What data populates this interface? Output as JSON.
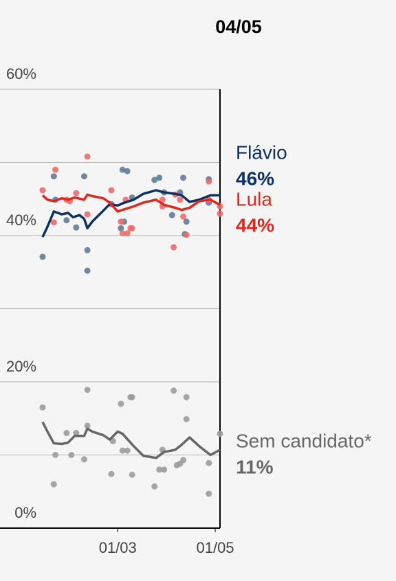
{
  "chart_data": {
    "type": "line",
    "title": "04/05",
    "xlim": [
      "13/01",
      "04/05"
    ],
    "xticks": [
      "01/03",
      "01/05"
    ],
    "ylim": [
      0,
      60
    ],
    "yticks": [
      {
        "value": 0,
        "label": "0%"
      },
      {
        "value": 20,
        "label": "20%"
      },
      {
        "value": 40,
        "label": "40%"
      },
      {
        "value": 60,
        "label": "60%"
      }
    ],
    "minor_yticks": [
      10,
      30,
      50
    ],
    "grid": true,
    "series": [
      {
        "name": "Flávio",
        "latest_label": "46%",
        "color": "#0d3261",
        "dot_color": "#5f7b9a",
        "x": [
          "13/01",
          "16/01",
          "20/01",
          "25/01",
          "29/01",
          "01/02",
          "05/02",
          "08/02",
          "10/02",
          "13/02",
          "20/02",
          "24/02",
          "01/03",
          "04/03",
          "11/03",
          "17/03",
          "25/03",
          "30/03",
          "06/04",
          "10/04",
          "15/04",
          "21/04",
          "28/04",
          "04/05"
        ],
        "values": [
          39.8,
          41.2,
          43.3,
          42.9,
          43.1,
          42.5,
          42.8,
          42.3,
          41.0,
          41.9,
          43.4,
          44.3,
          44.1,
          44.4,
          44.9,
          45.7,
          46.2,
          45.9,
          45.7,
          45.5,
          44.6,
          44.9,
          45.5,
          45.5
        ],
        "polls": {
          "x": [
            "13/01",
            "20/01",
            "21/01",
            "28/01",
            "03/02",
            "08/02",
            "10/02",
            "10/02",
            "25/02",
            "03/03",
            "04/03",
            "07/03",
            "05/03",
            "10/03",
            "24/03",
            "27/03",
            "30/03",
            "04/04",
            "09/04",
            "11/04",
            "13/04",
            "12/04",
            "27/04",
            "27/04"
          ],
          "values": [
            37.1,
            48.1,
            44.9,
            42.1,
            41.1,
            48.1,
            38.0,
            35.2,
            44.3,
            41.0,
            49.0,
            48.8,
            41.9,
            45.2,
            47.6,
            47.9,
            45.9,
            42.8,
            45.9,
            47.9,
            41.9,
            40.2,
            47.7,
            44.5
          ]
        }
      },
      {
        "name": "Lula",
        "latest_label": "44%",
        "color": "#e0261d",
        "dot_color": "#ec6b6b",
        "x": [
          "13/01",
          "16/01",
          "20/01",
          "25/01",
          "29/01",
          "02/02",
          "08/02",
          "10/02",
          "13/02",
          "20/02",
          "24/02",
          "01/03",
          "04/03",
          "11/03",
          "17/03",
          "25/03",
          "30/03",
          "06/04",
          "10/04",
          "15/04",
          "21/04",
          "28/04",
          "04/05"
        ],
        "values": [
          45.5,
          44.9,
          44.7,
          45.1,
          44.9,
          45.2,
          44.9,
          45.6,
          45.4,
          45.1,
          44.5,
          43.3,
          43.5,
          44.0,
          44.5,
          44.9,
          44.2,
          43.8,
          43.5,
          43.8,
          44.7,
          44.9,
          44.2
        ],
        "polls": {
          "x": [
            "13/01",
            "20/01",
            "21/01",
            "28/01",
            "30/01",
            "03/02",
            "10/02",
            "10/02",
            "25/02",
            "03/03",
            "04/03",
            "06/03",
            "07/03",
            "09/03",
            "10/03",
            "29/03",
            "29/03",
            "05/04",
            "06/04",
            "09/04",
            "11/04",
            "13/04",
            "27/04",
            "27/04",
            "04/05",
            "04/05"
          ],
          "values": [
            46.2,
            41.8,
            49.0,
            44.9,
            44.7,
            45.8,
            50.8,
            42.9,
            46.2,
            41.9,
            40.3,
            44.9,
            40.3,
            41.0,
            41.0,
            44.9,
            44.0,
            38.4,
            45.6,
            44.9,
            42.6,
            40.1,
            47.4,
            44.9,
            44.0,
            43.0
          ]
        }
      },
      {
        "name": "Sem candidato*",
        "latest_label": "11%",
        "color": "#666666",
        "dot_color": "#9c9c9c",
        "x": [
          "13/01",
          "16/01",
          "20/01",
          "25/01",
          "29/01",
          "02/02",
          "08/02",
          "10/02",
          "13/02",
          "20/02",
          "24/02",
          "01/03",
          "04/03",
          "11/03",
          "17/03",
          "25/03",
          "30/03",
          "06/04",
          "10/04",
          "15/04",
          "21/04",
          "28/04",
          "04/05"
        ],
        "values": [
          14.5,
          13.2,
          11.6,
          11.5,
          11.7,
          12.6,
          12.6,
          13.6,
          13.2,
          12.7,
          12.1,
          13.2,
          12.9,
          11.2,
          9.9,
          9.6,
          10.4,
          10.7,
          11.4,
          12.4,
          11.2,
          10.0,
          10.7
        ],
        "polls": {
          "x": [
            "13/01",
            "20/01",
            "21/01",
            "28/01",
            "31/01",
            "03/02",
            "08/02",
            "10/02",
            "10/02",
            "25/02",
            "26/02",
            "03/03",
            "04/03",
            "07/03",
            "09/03",
            "10/03",
            "10/03",
            "24/03",
            "27/03",
            "30/03",
            "29/03",
            "05/04",
            "07/04",
            "09/04",
            "11/04",
            "13/04",
            "13/04",
            "27/04",
            "27/04",
            "04/05"
          ],
          "values": [
            16.5,
            6.0,
            10.0,
            13.0,
            10.0,
            13.0,
            9.4,
            18.9,
            14.0,
            7.4,
            11.9,
            17.0,
            10.6,
            10.6,
            17.9,
            17.9,
            7.3,
            5.7,
            8.0,
            8.0,
            10.7,
            18.8,
            8.6,
            8.8,
            9.3,
            17.9,
            14.9,
            8.9,
            4.7,
            12.9
          ]
        }
      }
    ]
  }
}
